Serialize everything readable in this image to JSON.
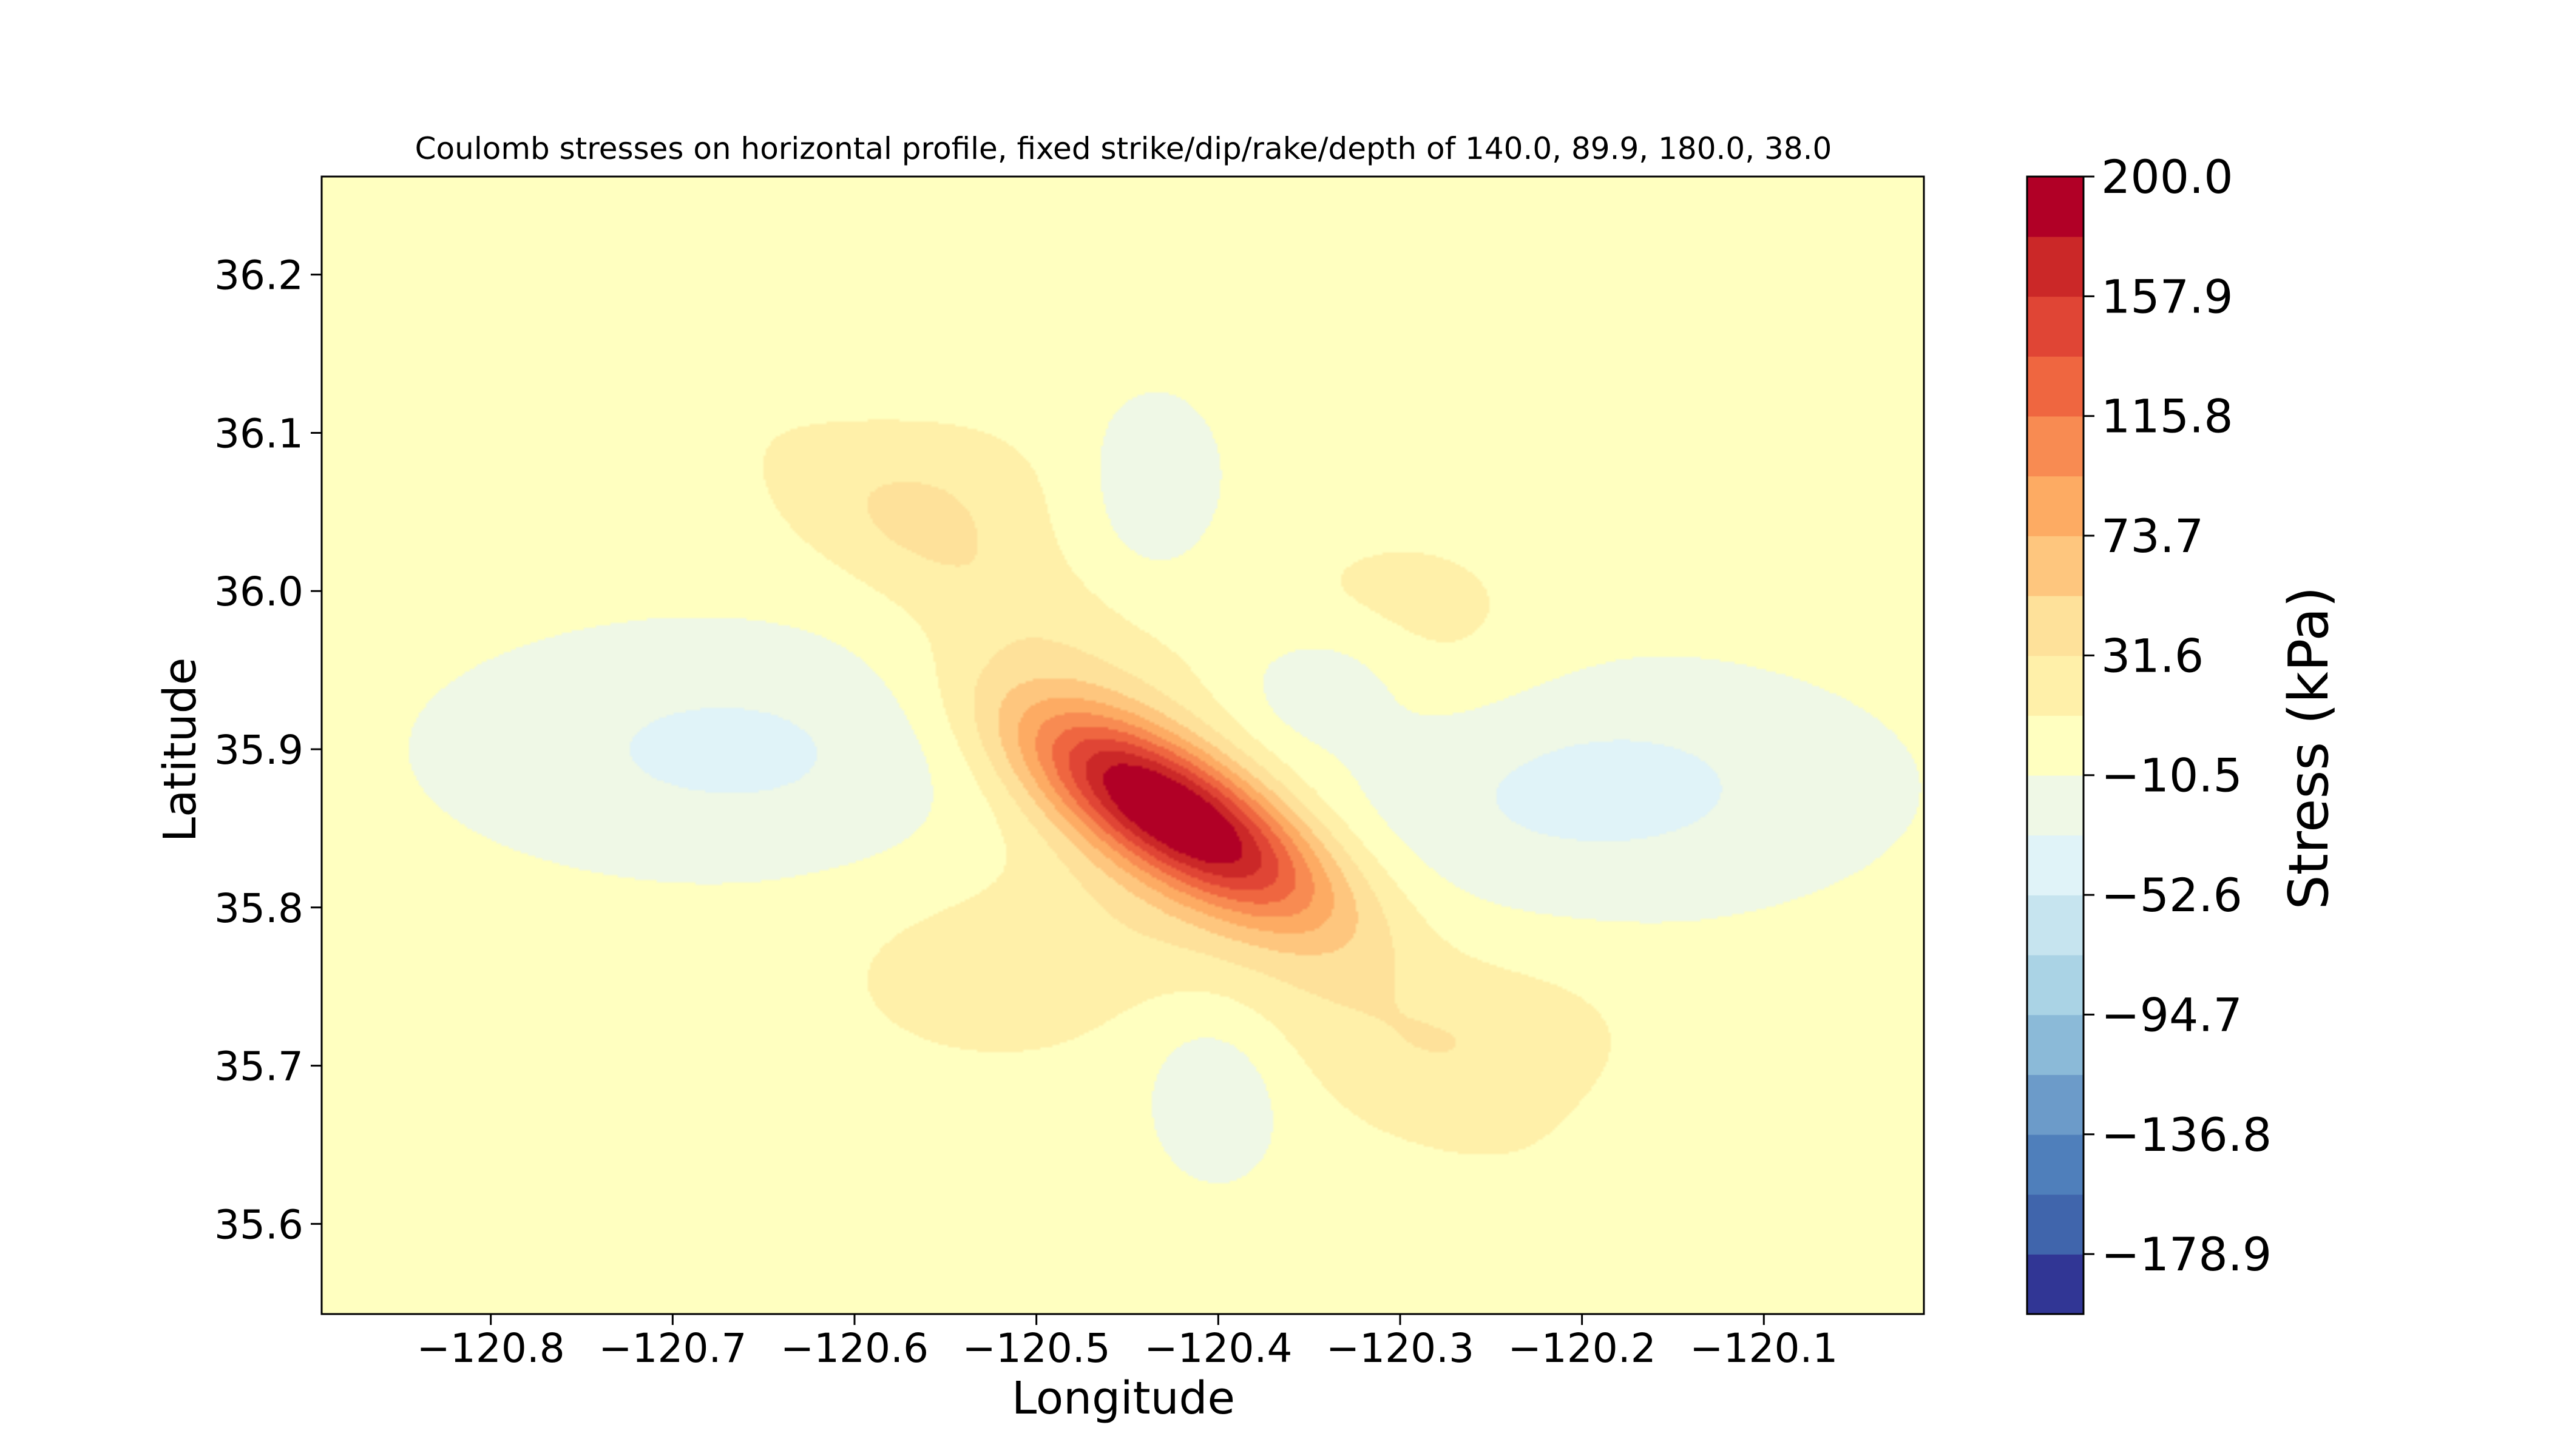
{
  "chart_data": {
    "type": "contourf",
    "title": "Coulomb stresses on horizontal profile, fixed strike/dip/rake/depth of 140.0, 89.9, 180.0, 38.0",
    "xlabel": "Longitude",
    "ylabel": "Latitude",
    "xlim": [
      -120.893,
      -120.012
    ],
    "ylim": [
      35.543,
      36.262
    ],
    "xticks": [
      -120.8,
      -120.7,
      -120.6,
      -120.5,
      -120.4,
      -120.3,
      -120.2,
      -120.1
    ],
    "xtick_labels": [
      "−120.8",
      "−120.7",
      "−120.6",
      "−120.5",
      "−120.4",
      "−120.3",
      "−120.2",
      "−120.1"
    ],
    "yticks": [
      35.6,
      35.7,
      35.8,
      35.9,
      36.0,
      36.1,
      36.2
    ],
    "ytick_labels": [
      "35.6",
      "35.7",
      "35.8",
      "35.9",
      "36.0",
      "36.1",
      "36.2"
    ],
    "colorbar": {
      "label": "Stress (kPa)",
      "range": [
        -200,
        200
      ],
      "tick_values": [
        200.0,
        157.9,
        115.8,
        73.7,
        31.6,
        -10.5,
        -52.6,
        -94.7,
        -136.8,
        -178.9
      ],
      "tick_labels": [
        "200.0",
        "157.9",
        "115.8",
        "73.7",
        "31.6",
        "−10.5",
        "−52.6",
        "−94.7",
        "−136.8",
        "−178.9"
      ],
      "colors": [
        "#313695",
        "#4065ac",
        "#4f7fbb",
        "#6c9bc9",
        "#8bbad8",
        "#aad3e5",
        "#c6e4ef",
        "#e0f3f8",
        "#eff8e6",
        "#ffffc0",
        "#fff0a9",
        "#fee19a",
        "#fec67e",
        "#fdab63",
        "#f88b52",
        "#ef6640",
        "#e04535",
        "#cb2828",
        "#b10026"
      ],
      "color_step": 21.05
    },
    "field_blobs": [
      {
        "lon": -120.425,
        "lat": 35.86,
        "amp": 215,
        "s_major": 0.072,
        "s_minor": 0.027,
        "angle_deg": -36
      },
      {
        "lon": -120.39,
        "lat": 35.77,
        "amp": 26,
        "s_major": 0.13,
        "s_minor": 0.035,
        "angle_deg": -38
      },
      {
        "lon": -120.5,
        "lat": 35.98,
        "amp": 26,
        "s_major": 0.12,
        "s_minor": 0.03,
        "angle_deg": -38
      },
      {
        "lon": -120.3,
        "lat": 35.97,
        "amp": 24,
        "s_major": 0.055,
        "s_minor": 0.045,
        "angle_deg": 0
      },
      {
        "lon": -120.52,
        "lat": 35.76,
        "amp": 24,
        "s_major": 0.06,
        "s_minor": 0.04,
        "angle_deg": 0
      },
      {
        "lon": -120.245,
        "lat": 35.72,
        "amp": 22,
        "s_major": 0.05,
        "s_minor": 0.035,
        "angle_deg": 0
      },
      {
        "lon": -120.555,
        "lat": 36.06,
        "amp": 22,
        "s_major": 0.05,
        "s_minor": 0.035,
        "angle_deg": 0
      },
      {
        "lon": -120.34,
        "lat": 35.945,
        "amp": -30,
        "s_major": 0.035,
        "s_minor": 0.028,
        "angle_deg": 15
      },
      {
        "lon": -120.19,
        "lat": 35.875,
        "amp": -38,
        "s_major": 0.11,
        "s_minor": 0.055,
        "angle_deg": 0
      },
      {
        "lon": -120.665,
        "lat": 35.9,
        "amp": -36,
        "s_major": 0.115,
        "s_minor": 0.055,
        "angle_deg": 0
      },
      {
        "lon": -120.435,
        "lat": 36.07,
        "amp": -26,
        "s_major": 0.028,
        "s_minor": 0.042,
        "angle_deg": 0
      },
      {
        "lon": -120.4,
        "lat": 35.69,
        "amp": -26,
        "s_major": 0.03,
        "s_minor": 0.048,
        "angle_deg": 0
      }
    ]
  }
}
